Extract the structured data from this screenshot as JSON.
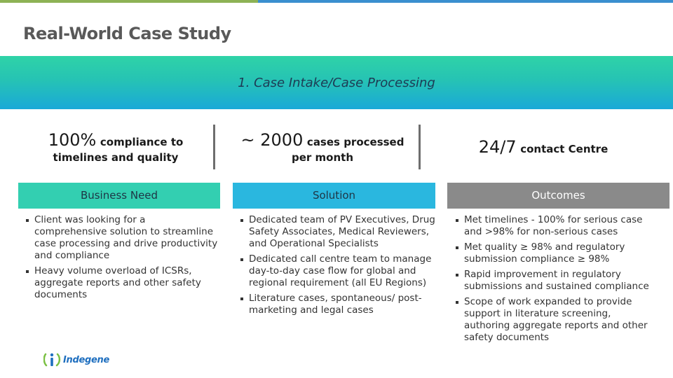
{
  "header": {
    "title": "Real-World Case Study",
    "banner": "1. Case Intake/Case Processing"
  },
  "stats": [
    {
      "big": "100%",
      "small": "compliance to",
      "line2": "timelines and quality"
    },
    {
      "big": "~ 2000",
      "small": "cases processed",
      "line2": "per month"
    },
    {
      "big": "24/7",
      "small": "contact Centre"
    }
  ],
  "columns": [
    {
      "heading": "Business Need",
      "bullets": [
        "Client was looking for a comprehensive solution to streamline case processing and drive productivity and compliance",
        "Heavy volume overload of ICSRs, aggregate reports and other safety documents"
      ]
    },
    {
      "heading": "Solution",
      "bullets": [
        "Dedicated team of PV Executives, Drug Safety Associates, Medical Reviewers, and Operational Specialists",
        "Dedicated call centre team to manage day-to-day case flow for global and regional requirement (all EU Regions)",
        "Literature cases, spontaneous/ post-marketing  and legal cases"
      ]
    },
    {
      "heading": "Outcomes",
      "bullets": [
        "Met timelines - 100% for serious case and >98% for non-serious cases",
        "Met quality ≥ 98% and regulatory submission compliance ≥ 98%",
        "Rapid improvement in regulatory submissions and sustained compliance",
        "Scope of work expanded to provide support in literature screening, authoring aggregate reports and other safety documents"
      ]
    }
  ],
  "logo": {
    "text": "Indegene"
  },
  "colors": {
    "green": "#33cfb1",
    "blue": "#2ab7df",
    "gray": "#8a8a8a"
  }
}
